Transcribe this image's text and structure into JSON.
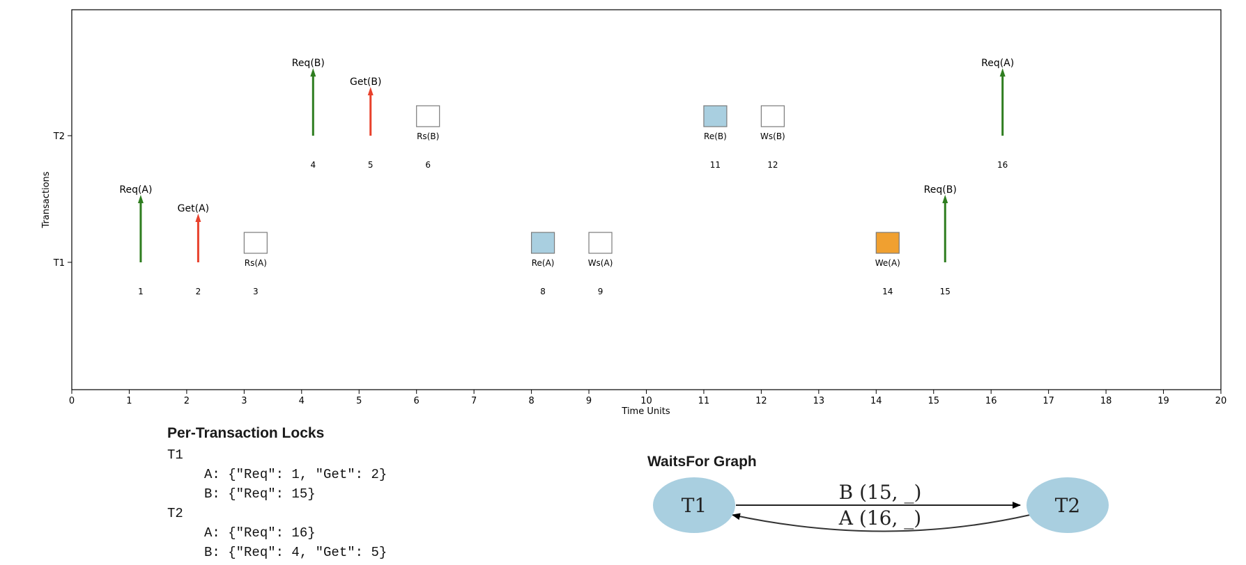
{
  "chart_data": {
    "type": "timeline",
    "xlabel": "Time Units",
    "ylabel": "Transactions",
    "xlim": [
      0,
      20
    ],
    "xticks": [
      0,
      1,
      2,
      3,
      4,
      5,
      6,
      7,
      8,
      9,
      10,
      11,
      12,
      13,
      14,
      15,
      16,
      17,
      18,
      19,
      20
    ],
    "yticks": [
      "T1",
      "T2"
    ],
    "colors": {
      "request": "#2e7d1f",
      "grant": "#e8412c",
      "shared": "#ffffff",
      "exclusive_read": "#a9cfe0",
      "exclusive_write": "#f0a030"
    },
    "events": [
      {
        "time": 1,
        "txn": "T1",
        "kind": "request",
        "label": "Req(A)",
        "index": "1"
      },
      {
        "time": 2,
        "txn": "T1",
        "kind": "grant",
        "label": "Get(A)",
        "index": "2"
      },
      {
        "time": 3,
        "txn": "T1",
        "kind": "shared",
        "label": "Rs(A)",
        "index": "3"
      },
      {
        "time": 4,
        "txn": "T2",
        "kind": "request",
        "label": "Req(B)",
        "index": "4"
      },
      {
        "time": 5,
        "txn": "T2",
        "kind": "grant",
        "label": "Get(B)",
        "index": "5"
      },
      {
        "time": 6,
        "txn": "T2",
        "kind": "shared",
        "label": "Rs(B)",
        "index": "6"
      },
      {
        "time": 8,
        "txn": "T1",
        "kind": "exclusive_read",
        "label": "Re(A)",
        "index": "8"
      },
      {
        "time": 9,
        "txn": "T1",
        "kind": "shared",
        "label": "Ws(A)",
        "index": "9"
      },
      {
        "time": 11,
        "txn": "T2",
        "kind": "exclusive_read",
        "label": "Re(B)",
        "index": "11"
      },
      {
        "time": 12,
        "txn": "T2",
        "kind": "shared",
        "label": "Ws(B)",
        "index": "12"
      },
      {
        "time": 14,
        "txn": "T1",
        "kind": "exclusive_write",
        "label": "We(A)",
        "index": "14"
      },
      {
        "time": 15,
        "txn": "T1",
        "kind": "request",
        "label": "Req(B)",
        "index": "15"
      },
      {
        "time": 16,
        "txn": "T2",
        "kind": "request",
        "label": "Req(A)",
        "index": "16"
      }
    ]
  },
  "locks_panel": {
    "title": "Per-Transaction Locks",
    "lines": [
      {
        "text": "T1",
        "indent": false
      },
      {
        "text": "A: {\"Req\": 1, \"Get\": 2}",
        "indent": true
      },
      {
        "text": "B: {\"Req\": 15}",
        "indent": true
      },
      {
        "text": "T2",
        "indent": false
      },
      {
        "text": "A: {\"Req\": 16}",
        "indent": true
      },
      {
        "text": "B: {\"Req\": 4, \"Get\": 5}",
        "indent": true
      }
    ]
  },
  "waitsfor": {
    "title": "WaitsFor Graph",
    "node_color": "#a9cfe0",
    "nodes": [
      "T1",
      "T2"
    ],
    "edges": [
      {
        "from": "T1",
        "to": "T2",
        "label": "B (15, _)"
      },
      {
        "from": "T2",
        "to": "T1",
        "label": "A (16, _)"
      }
    ]
  }
}
